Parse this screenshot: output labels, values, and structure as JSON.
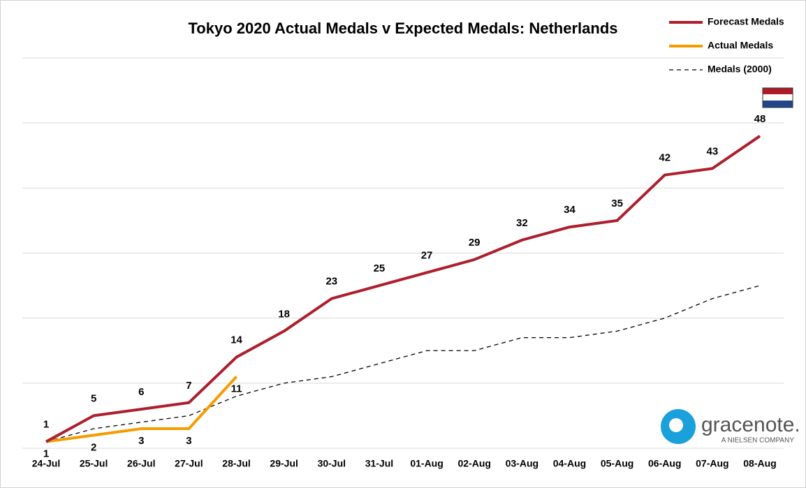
{
  "chart_data": {
    "type": "line",
    "title": "Tokyo 2020 Actual Medals v Expected Medals: Netherlands",
    "categories": [
      "24-Jul",
      "25-Jul",
      "26-Jul",
      "27-Jul",
      "28-Jul",
      "29-Jul",
      "30-Jul",
      "31-Jul",
      "01-Aug",
      "02-Aug",
      "03-Aug",
      "04-Aug",
      "05-Aug",
      "06-Aug",
      "07-Aug",
      "08-Aug"
    ],
    "series": [
      {
        "name": "Forecast Medals",
        "color": "#ad1f2d",
        "style": "solid",
        "labels": "above",
        "values": [
          1,
          5,
          6,
          7,
          14,
          18,
          23,
          25,
          27,
          29,
          32,
          34,
          35,
          42,
          43,
          48
        ]
      },
      {
        "name": "Actual Medals",
        "color": "#f59c00",
        "style": "solid",
        "labels": "below",
        "values": [
          1,
          2,
          3,
          3,
          11,
          null,
          null,
          null,
          null,
          null,
          null,
          null,
          null,
          null,
          null,
          null
        ]
      },
      {
        "name": "Medals (2000)",
        "color": "#000000",
        "style": "dashed",
        "labels": "none",
        "values": [
          1,
          3,
          4,
          5,
          8,
          10,
          11,
          13,
          15,
          15,
          17,
          17,
          18,
          20,
          23,
          25
        ]
      }
    ],
    "ylim": [
      0,
      60
    ],
    "yticks": [
      0,
      10,
      20,
      30,
      40,
      50,
      60
    ],
    "show_y_tick_labels": false,
    "grid": true,
    "legend": "top-right"
  },
  "logo": {
    "name": "gracenote.",
    "tagline": "A NIELSEN COMPANY"
  }
}
